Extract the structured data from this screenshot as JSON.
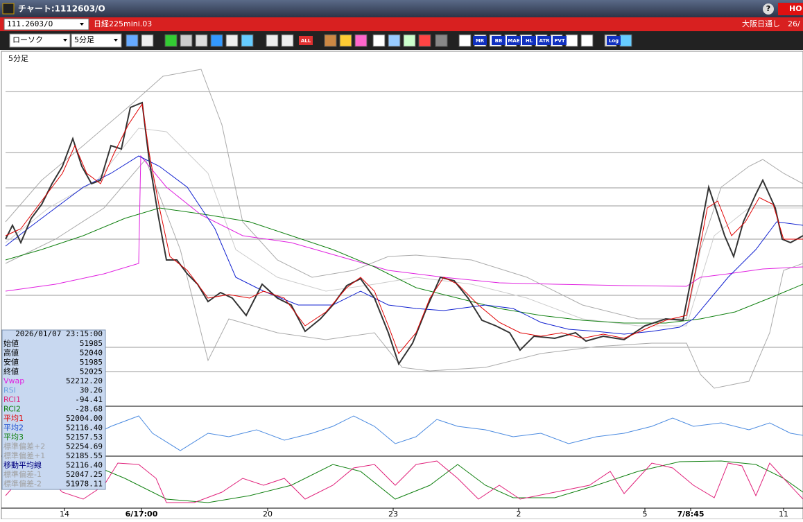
{
  "window": {
    "title": "チャート:1112603/O",
    "help": "?",
    "hot": "HO"
  },
  "symbolbar": {
    "code": "111.2603/O",
    "name": "日経225mini.03",
    "market": "大阪日通し　26/"
  },
  "toolbar": {
    "chart_style": "ローソク",
    "timeframe": "5分足",
    "icon_labels": [
      "ALL",
      "MR",
      "BB",
      "MAE",
      "HL",
      "ATR",
      "PVT",
      "Log"
    ]
  },
  "chart": {
    "timeframe_label": "5分足",
    "x_labels": [
      "14",
      "6/17:00",
      "20",
      "23",
      "2",
      "5",
      "7/8:45",
      "11"
    ]
  },
  "info_panel": {
    "datetime": "2026/01/07 23:15:00",
    "rows": [
      {
        "label": "始値",
        "value": "51985",
        "color": "#000000"
      },
      {
        "label": "高値",
        "value": "52040",
        "color": "#000000"
      },
      {
        "label": "安値",
        "value": "51985",
        "color": "#000000"
      },
      {
        "label": "終値",
        "value": "52025",
        "color": "#000000"
      },
      {
        "label": "Vwap",
        "value": "52212.20",
        "color": "#e020e0"
      },
      {
        "label": "RSI",
        "value": "30.26",
        "color": "#6aa0e0"
      },
      {
        "label": "RCI1",
        "value": "-94.41",
        "color": "#e0207a"
      },
      {
        "label": "RCI2",
        "value": "-28.68",
        "color": "#108010"
      },
      {
        "label": "平均1",
        "value": "52004.00",
        "color": "#e00000"
      },
      {
        "label": "平均2",
        "value": "52116.40",
        "color": "#2050d0"
      },
      {
        "label": "平均3",
        "value": "52157.53",
        "color": "#108010"
      },
      {
        "label": "標準偏差+2",
        "value": "52254.69",
        "color": "#a0a0a0"
      },
      {
        "label": "標準偏差+1",
        "value": "52185.55",
        "color": "#a0a0a0"
      },
      {
        "label": "移動平均線",
        "value": "52116.40",
        "color": "#000080"
      },
      {
        "label": "標準偏差-1",
        "value": "52047.25",
        "color": "#a0a0a0"
      },
      {
        "label": "標準偏差-2",
        "value": "51978.11",
        "color": "#a0a0a0"
      }
    ]
  }
}
